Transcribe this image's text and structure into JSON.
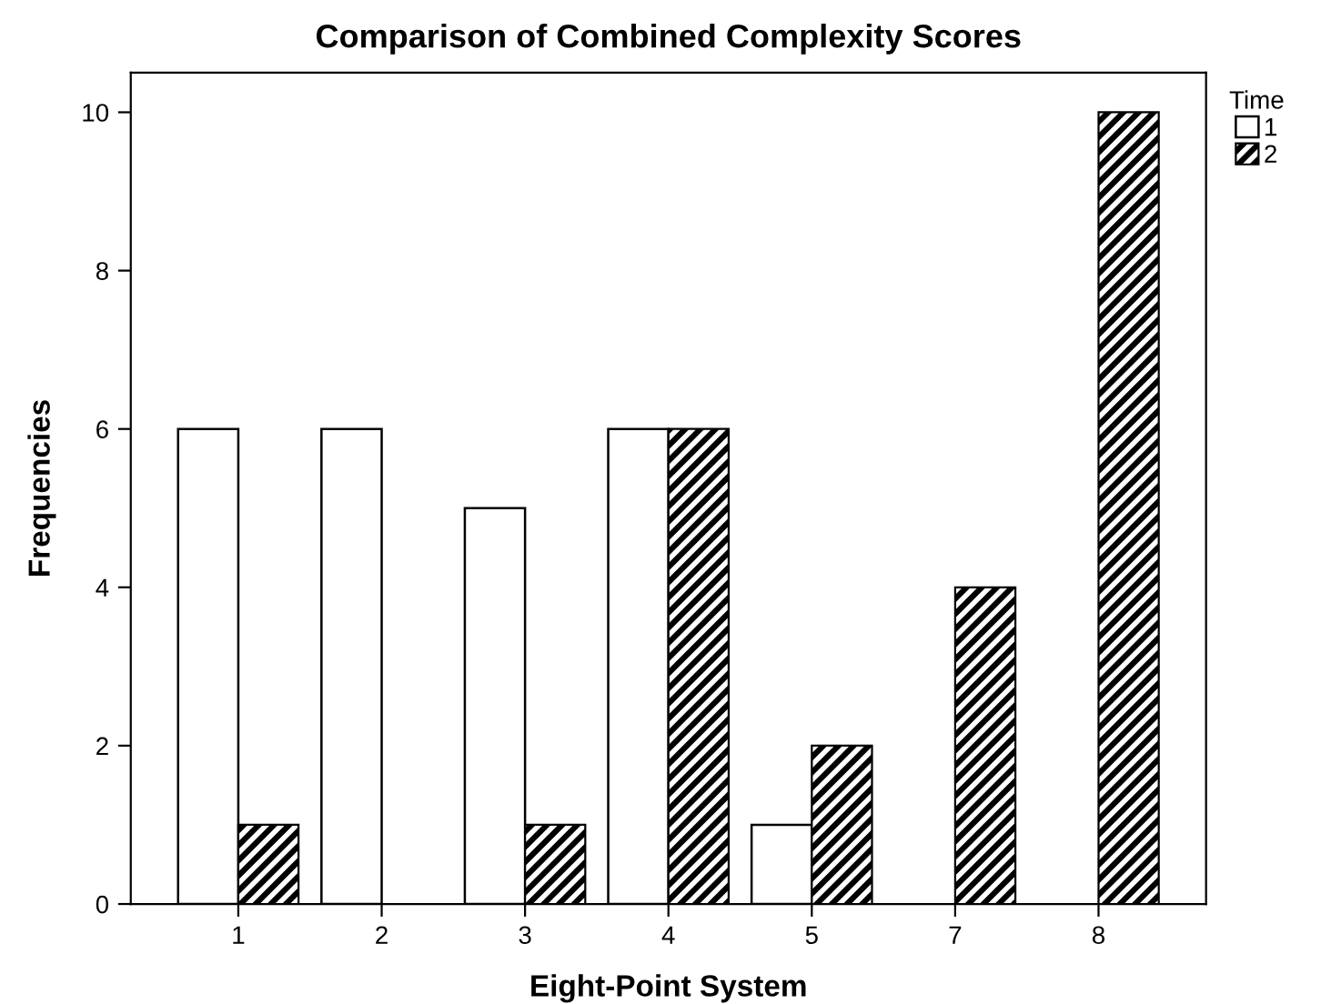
{
  "chart_data": {
    "type": "bar",
    "title": "Comparison of Combined Complexity Scores",
    "xlabel": "Eight-Point System",
    "ylabel": "Frequencies",
    "legend_title": "Time",
    "categories": [
      "1",
      "2",
      "3",
      "4",
      "5",
      "7",
      "8"
    ],
    "series": [
      {
        "name": "1",
        "color": "#ffffff",
        "values": [
          6,
          6,
          5,
          6,
          1,
          0,
          0
        ]
      },
      {
        "name": "2",
        "color": "#000000",
        "values": [
          1,
          0,
          1,
          6,
          2,
          4,
          10
        ]
      }
    ],
    "ylim": [
      0,
      10.5
    ],
    "yticks": [
      0,
      2,
      4,
      6,
      8,
      10
    ],
    "grid": false,
    "legend": "top right"
  }
}
